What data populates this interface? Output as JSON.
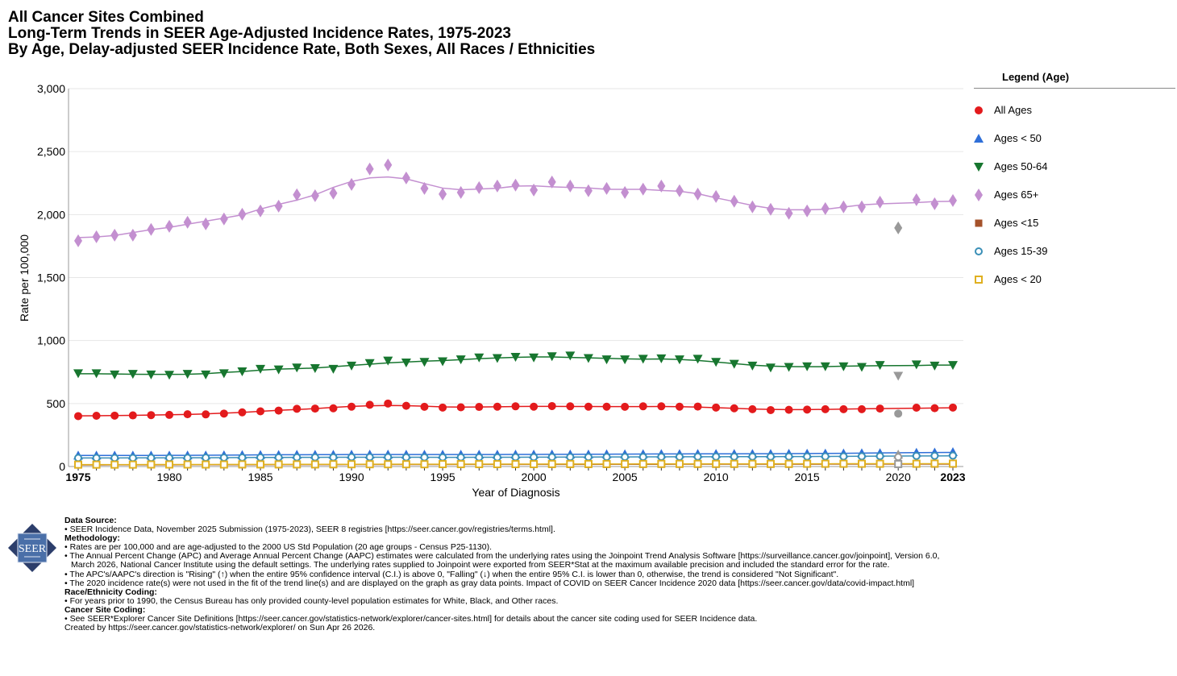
{
  "chart_data": {
    "type": "line",
    "title": "All Cancer Sites Combined",
    "subtitle": "Long-Term Trends in SEER Age-Adjusted Incidence Rates, 1975-2023",
    "subtitle2": "By Age, Delay-adjusted SEER Incidence Rate, Both Sexes, All Races / Ethnicities",
    "xlabel": "Year of Diagnosis",
    "ylabel": "Rate per 100,000",
    "xlim": [
      1975,
      2023
    ],
    "ylim": [
      0,
      3000
    ],
    "yticks": [
      "0",
      "500",
      "1,000",
      "1,500",
      "2,000",
      "2,500",
      "3,000"
    ],
    "ytick_values": [
      0,
      500,
      1000,
      1500,
      2000,
      2500,
      3000
    ],
    "xticks": [
      "1975",
      "1980",
      "1985",
      "1990",
      "1995",
      "2000",
      "2005",
      "2010",
      "2015",
      "2020",
      "2023"
    ],
    "xtick_values": [
      1975,
      1980,
      1985,
      1990,
      1995,
      2000,
      2005,
      2010,
      2015,
      2020,
      2023
    ],
    "grid": true,
    "legend_title": "Legend (Age)",
    "legend_placement": "right",
    "gray_year": 2020,
    "gray_color": "#999999",
    "series": [
      {
        "name": "All Ages",
        "marker": "circle",
        "color": "#e31a1c",
        "values": [
          400,
          403,
          404,
          406,
          408,
          410,
          415,
          414,
          420,
          430,
          438,
          444,
          458,
          460,
          462,
          475,
          490,
          500,
          482,
          474,
          468,
          470,
          473,
          475,
          478,
          475,
          480,
          478,
          475,
          475,
          474,
          478,
          478,
          475,
          476,
          468,
          462,
          455,
          448,
          450,
          452,
          455,
          455,
          455,
          460,
          420,
          467,
          463,
          468
        ]
      },
      {
        "name": "Ages < 50",
        "marker": "triangle-up",
        "color": "#2f6fd8",
        "values": [
          88,
          88,
          88,
          88,
          88,
          88,
          89,
          89,
          90,
          92,
          93,
          93,
          94,
          94,
          94,
          95,
          96,
          96,
          95,
          95,
          95,
          95,
          95,
          95,
          96,
          96,
          97,
          97,
          97,
          98,
          98,
          99,
          100,
          100,
          101,
          101,
          101,
          101,
          101,
          102,
          103,
          104,
          105,
          106,
          107,
          96,
          110,
          112,
          115
        ]
      },
      {
        "name": "Ages 50-64",
        "marker": "triangle-down",
        "color": "#17762f",
        "values": [
          740,
          740,
          730,
          735,
          730,
          728,
          735,
          730,
          740,
          755,
          775,
          770,
          785,
          780,
          775,
          800,
          820,
          840,
          825,
          830,
          835,
          850,
          865,
          860,
          870,
          865,
          875,
          880,
          860,
          850,
          850,
          855,
          858,
          850,
          855,
          830,
          815,
          800,
          785,
          790,
          795,
          795,
          795,
          790,
          805,
          720,
          810,
          800,
          805
        ]
      },
      {
        "name": "Ages 65+",
        "marker": "diamond",
        "color": "#c38fd0",
        "values": [
          1792,
          1824,
          1837,
          1837,
          1882,
          1907,
          1939,
          1926,
          1965,
          2003,
          2029,
          2067,
          2157,
          2150,
          2170,
          2240,
          2362,
          2394,
          2291,
          2208,
          2163,
          2176,
          2214,
          2227,
          2234,
          2195,
          2259,
          2227,
          2189,
          2208,
          2176,
          2202,
          2227,
          2189,
          2163,
          2144,
          2106,
          2061,
          2042,
          2010,
          2029,
          2048,
          2061,
          2061,
          2099,
          1894,
          2118,
          2086,
          2112
        ]
      },
      {
        "name": "Ages <15",
        "marker": "square",
        "color": "#a5522a",
        "values": [
          13,
          13,
          13,
          13,
          14,
          14,
          14,
          14,
          14,
          14,
          15,
          15,
          15,
          15,
          15,
          16,
          16,
          16,
          16,
          16,
          16,
          16,
          17,
          17,
          17,
          17,
          17,
          17,
          17,
          17,
          17,
          18,
          18,
          18,
          18,
          18,
          18,
          18,
          18,
          18,
          19,
          19,
          19,
          19,
          19,
          17,
          19,
          19,
          19
        ]
      },
      {
        "name": "Ages 15-39",
        "marker": "circle-open",
        "color": "#3a8fb7",
        "values": [
          68,
          68,
          68,
          68,
          69,
          69,
          69,
          70,
          70,
          71,
          72,
          72,
          73,
          73,
          73,
          74,
          74,
          74,
          73,
          73,
          73,
          73,
          73,
          73,
          74,
          74,
          75,
          75,
          75,
          76,
          76,
          76,
          77,
          77,
          78,
          78,
          78,
          78,
          78,
          79,
          79,
          80,
          80,
          81,
          82,
          75,
          84,
          85,
          86
        ]
      },
      {
        "name": "Ages < 20",
        "marker": "square-open",
        "color": "#e0b020",
        "values": [
          15,
          15,
          15,
          15,
          16,
          16,
          16,
          16,
          16,
          17,
          17,
          17,
          17,
          17,
          18,
          18,
          18,
          18,
          18,
          18,
          19,
          19,
          19,
          19,
          19,
          19,
          20,
          20,
          20,
          20,
          20,
          20,
          21,
          21,
          21,
          21,
          21,
          21,
          21,
          21,
          22,
          22,
          22,
          22,
          22,
          20,
          22,
          23,
          23
        ]
      }
    ]
  },
  "footer": {
    "logo_text": "SEER",
    "data_source_h": "Data Source:",
    "data_source": "• SEER Incidence Data, November 2025 Submission (1975-2023), SEER 8 registries [https://seer.cancer.gov/registries/terms.html].",
    "methodology_h": "Methodology:",
    "m1": "• Rates are per 100,000 and are age-adjusted to the 2000 US Std Population (20 age groups - Census P25-1130).",
    "m2": "• The Annual Percent Change (APC) and Average Annual Percent Change (AAPC) estimates were calculated from the underlying rates using the Joinpoint Trend Analysis Software [https://surveillance.cancer.gov/joinpoint], Version 6.0, March 2026, National Cancer Institute using the default settings. The underlying rates supplied to Joinpoint were exported from SEER*Stat at the maximum available precision and included the standard error for the rate.",
    "m3": "• The APC's/AAPC's direction is \"Rising\" (↑) when the entire 95% confidence interval (C.I.) is above 0, \"Falling\" (↓) when the entire 95% C.I. is lower than 0, otherwise, the trend is considered \"Not Significant\".",
    "m4": "• The 2020 incidence rate(s) were not used in the fit of the trend line(s) and are displayed on the graph as gray data points. Impact of COVID on SEER Cancer Incidence 2020 data [https://seer.cancer.gov/data/covid-impact.html]",
    "race_h": "Race/Ethnicity Coding:",
    "race": "• For years prior to 1990, the Census Bureau has only provided county-level population estimates for White, Black, and Other races.",
    "site_h": "Cancer Site Coding:",
    "site": "• See SEER*Explorer Cancer Site Definitions [https://seer.cancer.gov/statistics-network/explorer/cancer-sites.html] for details about the cancer site coding used for SEER Incidence data.",
    "created": "Created by https://seer.cancer.gov/statistics-network/explorer/ on Sun Apr 26 2026."
  }
}
